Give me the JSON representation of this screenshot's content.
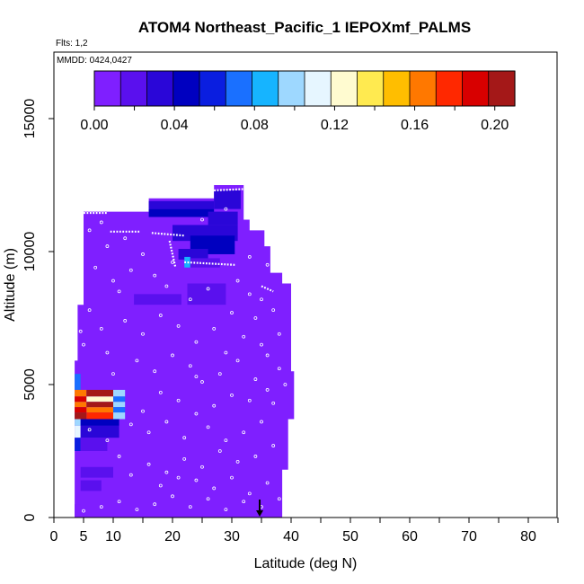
{
  "chart_data": {
    "type": "heatmap",
    "title": "ATOM4 Northeast_Pacific_1 IEPOXmf_PALMS",
    "subtitle_flights": "Flts: 1,2",
    "subtitle_dates": "MMDD: 0424,0427",
    "xlabel": "Latitude (deg N)",
    "ylabel": "Altitude (m)",
    "xlim": [
      0,
      85
    ],
    "ylim": [
      0,
      17500
    ],
    "x_ticks": [
      0,
      5,
      10,
      20,
      30,
      40,
      50,
      60,
      70,
      80
    ],
    "x_minor_ticks": [
      15,
      25,
      35,
      45,
      55,
      65,
      75,
      85
    ],
    "y_ticks": [
      0,
      5000,
      10000,
      15000
    ],
    "colorbar": {
      "min": 0.0,
      "max": 0.21,
      "ticks": [
        0.0,
        0.04,
        0.08,
        0.12,
        0.16,
        0.2
      ],
      "tick_labels": [
        "0.00",
        "0.04",
        "0.08",
        "0.12",
        "0.16",
        "0.20"
      ],
      "colors": [
        "#7f1fff",
        "#5a10ee",
        "#2a06d8",
        "#0000c0",
        "#0a1ee0",
        "#1a70ff",
        "#16b4ff",
        "#9ed8ff",
        "#e6f6ff",
        "#fffbd0",
        "#ffea50",
        "#ffbe00",
        "#ff7800",
        "#ff2800",
        "#d80000",
        "#a41818"
      ]
    },
    "background_value": 0.0,
    "cells": [
      {
        "x": [
          3.5,
          4.5
        ],
        "y": [
          4800,
          5400
        ],
        "v": 0.07
      },
      {
        "x": [
          3.5,
          5.5
        ],
        "y": [
          4550,
          4800
        ],
        "v": 0.17
      },
      {
        "x": [
          5.5,
          10.0
        ],
        "y": [
          4550,
          4800
        ],
        "v": 0.2
      },
      {
        "x": [
          10.0,
          12.0
        ],
        "y": [
          4550,
          4800
        ],
        "v": 0.1
      },
      {
        "x": [
          3.5,
          5.5
        ],
        "y": [
          4350,
          4550
        ],
        "v": 0.19
      },
      {
        "x": [
          5.5,
          10.0
        ],
        "y": [
          4350,
          4550
        ],
        "v": 0.13
      },
      {
        "x": [
          10.0,
          12.0
        ],
        "y": [
          4350,
          4550
        ],
        "v": 0.07
      },
      {
        "x": [
          3.5,
          5.5
        ],
        "y": [
          4150,
          4350
        ],
        "v": 0.17
      },
      {
        "x": [
          5.5,
          10.0
        ],
        "y": [
          4150,
          4350
        ],
        "v": 0.2
      },
      {
        "x": [
          10.0,
          12.0
        ],
        "y": [
          4150,
          4350
        ],
        "v": 0.1
      },
      {
        "x": [
          3.5,
          5.5
        ],
        "y": [
          3950,
          4150
        ],
        "v": 0.19
      },
      {
        "x": [
          5.5,
          10.0
        ],
        "y": [
          3950,
          4150
        ],
        "v": 0.16
      },
      {
        "x": [
          10.0,
          12.0
        ],
        "y": [
          3950,
          4150
        ],
        "v": 0.07
      },
      {
        "x": [
          3.5,
          5.5
        ],
        "y": [
          3700,
          3950
        ],
        "v": 0.2
      },
      {
        "x": [
          5.5,
          10.0
        ],
        "y": [
          3700,
          3950
        ],
        "v": 0.18
      },
      {
        "x": [
          10.0,
          12.0
        ],
        "y": [
          3700,
          3950
        ],
        "v": 0.1
      },
      {
        "x": [
          3.5,
          4.5
        ],
        "y": [
          3450,
          3700
        ],
        "v": 0.1
      },
      {
        "x": [
          4.5,
          11.0
        ],
        "y": [
          3450,
          3700
        ],
        "v": 0.04
      },
      {
        "x": [
          3.5,
          4.5
        ],
        "y": [
          3000,
          3450
        ],
        "v": 0.11
      },
      {
        "x": [
          4.5,
          11.0
        ],
        "y": [
          3000,
          3450
        ],
        "v": 0.03
      },
      {
        "x": [
          3.5,
          4.5
        ],
        "y": [
          2500,
          3000
        ],
        "v": 0.06
      },
      {
        "x": [
          4.5,
          9.0
        ],
        "y": [
          2500,
          3000
        ],
        "v": 0.02
      },
      {
        "x": [
          4.5,
          10.0
        ],
        "y": [
          1500,
          1900
        ],
        "v": 0.02
      },
      {
        "x": [
          4.5,
          8.0
        ],
        "y": [
          1000,
          1400
        ],
        "v": 0.015
      },
      {
        "x": [
          13.5,
          21.5
        ],
        "y": [
          8000,
          8400
        ],
        "v": 0.02
      },
      {
        "x": [
          16.0,
          27.0
        ],
        "y": [
          11600,
          11900
        ],
        "v": 0.03
      },
      {
        "x": [
          16.0,
          27.0
        ],
        "y": [
          11300,
          11600
        ],
        "v": 0.04
      },
      {
        "x": [
          27.0,
          31.5
        ],
        "y": [
          11600,
          12300
        ],
        "v": 0.035
      },
      {
        "x": [
          26.0,
          31.0
        ],
        "y": [
          11000,
          11500
        ],
        "v": 0.03
      },
      {
        "x": [
          20.0,
          31.0
        ],
        "y": [
          10400,
          11000
        ],
        "v": 0.03
      },
      {
        "x": [
          23.0,
          30.5
        ],
        "y": [
          9900,
          10600
        ],
        "v": 0.05
      },
      {
        "x": [
          21.0,
          26.0
        ],
        "y": [
          9700,
          10100
        ],
        "v": 0.03
      },
      {
        "x": [
          22.0,
          23.0
        ],
        "y": [
          9400,
          9800
        ],
        "v": 0.08
      },
      {
        "x": [
          23.0,
          28.0
        ],
        "y": [
          9400,
          9750
        ],
        "v": 0.025
      },
      {
        "x": [
          22.5,
          29.0
        ],
        "y": [
          8000,
          8800
        ],
        "v": 0.015
      },
      {
        "x": [
          3.5,
          4.5
        ],
        "y": [
          0,
          500
        ],
        "v": 0.01
      }
    ],
    "data_region": [
      [
        3.5,
        0
      ],
      [
        3.5,
        5900
      ],
      [
        4.0,
        5900
      ],
      [
        4.0,
        8000
      ],
      [
        5.0,
        8000
      ],
      [
        5.0,
        11500
      ],
      [
        16.0,
        11500
      ],
      [
        16.0,
        12000
      ],
      [
        27.0,
        12000
      ],
      [
        27.0,
        12500
      ],
      [
        32.0,
        12500
      ],
      [
        32.0,
        11200
      ],
      [
        33.0,
        11200
      ],
      [
        33.0,
        10800
      ],
      [
        35.5,
        10800
      ],
      [
        35.5,
        10200
      ],
      [
        36.5,
        10200
      ],
      [
        36.5,
        9200
      ],
      [
        38.5,
        9200
      ],
      [
        38.5,
        8800
      ],
      [
        40.0,
        8800
      ],
      [
        40.0,
        5500
      ],
      [
        40.5,
        5500
      ],
      [
        40.5,
        3700
      ],
      [
        39.5,
        3700
      ],
      [
        39.5,
        1800
      ],
      [
        38.5,
        1800
      ],
      [
        38.5,
        0
      ]
    ],
    "flight_tracks": [
      {
        "x": [
          4.5,
          9.0
        ],
        "y": [
          11450,
          11450
        ]
      },
      {
        "x": [
          9.5,
          14.5
        ],
        "y": [
          10750,
          10750
        ]
      },
      {
        "x": [
          16.5,
          22.0
        ],
        "y": [
          10700,
          10600
        ]
      },
      {
        "x": [
          22.0,
          30.5
        ],
        "y": [
          9600,
          9500
        ]
      },
      {
        "x": [
          27.0,
          32.0
        ],
        "y": [
          12300,
          12350
        ]
      },
      {
        "x": [
          35.0,
          37.0
        ],
        "y": [
          8700,
          8500
        ]
      },
      {
        "x": [
          19.5,
          20.5
        ],
        "y": [
          10400,
          9400
        ]
      }
    ],
    "sample_points": [
      [
        6,
        10800
      ],
      [
        9,
        10200
      ],
      [
        12,
        10500
      ],
      [
        15,
        9900
      ],
      [
        7,
        9400
      ],
      [
        10,
        8900
      ],
      [
        13,
        9300
      ],
      [
        17,
        9100
      ],
      [
        19,
        8700
      ],
      [
        11,
        8500
      ],
      [
        6,
        7800
      ],
      [
        8,
        7100
      ],
      [
        12,
        7400
      ],
      [
        15,
        6900
      ],
      [
        18,
        7600
      ],
      [
        21,
        7200
      ],
      [
        24,
        6600
      ],
      [
        27,
        7100
      ],
      [
        29,
        6200
      ],
      [
        32,
        6800
      ],
      [
        34,
        7500
      ],
      [
        36,
        6100
      ],
      [
        38,
        6900
      ],
      [
        37,
        7800
      ],
      [
        35,
        8200
      ],
      [
        33,
        8400
      ],
      [
        5,
        6500
      ],
      [
        9,
        6200
      ],
      [
        14,
        5900
      ],
      [
        17,
        5500
      ],
      [
        20,
        6100
      ],
      [
        23,
        5700
      ],
      [
        25,
        5100
      ],
      [
        28,
        5400
      ],
      [
        31,
        5900
      ],
      [
        34,
        5200
      ],
      [
        36,
        4800
      ],
      [
        38,
        5600
      ],
      [
        33,
        4400
      ],
      [
        30,
        4600
      ],
      [
        27,
        4200
      ],
      [
        24,
        3900
      ],
      [
        21,
        4400
      ],
      [
        18,
        4700
      ],
      [
        15,
        4000
      ],
      [
        13,
        3500
      ],
      [
        16,
        3200
      ],
      [
        19,
        3600
      ],
      [
        22,
        3000
      ],
      [
        26,
        3400
      ],
      [
        29,
        2900
      ],
      [
        32,
        3200
      ],
      [
        35,
        3600
      ],
      [
        37,
        2700
      ],
      [
        34,
        2300
      ],
      [
        31,
        2100
      ],
      [
        28,
        2500
      ],
      [
        25,
        1900
      ],
      [
        22,
        2200
      ],
      [
        19,
        1700
      ],
      [
        16,
        2000
      ],
      [
        13,
        1600
      ],
      [
        11,
        2300
      ],
      [
        9,
        2900
      ],
      [
        24,
        1400
      ],
      [
        27,
        1100
      ],
      [
        30,
        1500
      ],
      [
        33,
        900
      ],
      [
        36,
        1300
      ],
      [
        38,
        700
      ],
      [
        35,
        400
      ],
      [
        32,
        600
      ],
      [
        29,
        300
      ],
      [
        26,
        700
      ],
      [
        23,
        400
      ],
      [
        20,
        800
      ],
      [
        17,
        500
      ],
      [
        14,
        300
      ],
      [
        11,
        600
      ],
      [
        8,
        400
      ],
      [
        5,
        250
      ],
      [
        18,
        1200
      ],
      [
        21,
        1500
      ],
      [
        37,
        4300
      ],
      [
        39,
        5000
      ],
      [
        36,
        9500
      ],
      [
        31,
        8900
      ],
      [
        26,
        8600
      ],
      [
        23,
        8200
      ],
      [
        20,
        9600
      ],
      [
        8,
        11100
      ],
      [
        25,
        11200
      ],
      [
        29,
        11600
      ],
      [
        33,
        9800
      ],
      [
        35,
        6500
      ],
      [
        30,
        7700
      ],
      [
        24,
        5300
      ],
      [
        10,
        5400
      ],
      [
        4.5,
        7000
      ],
      [
        6,
        3300
      ]
    ],
    "marker": {
      "type": "arrow-down",
      "x": 34.7
    }
  }
}
